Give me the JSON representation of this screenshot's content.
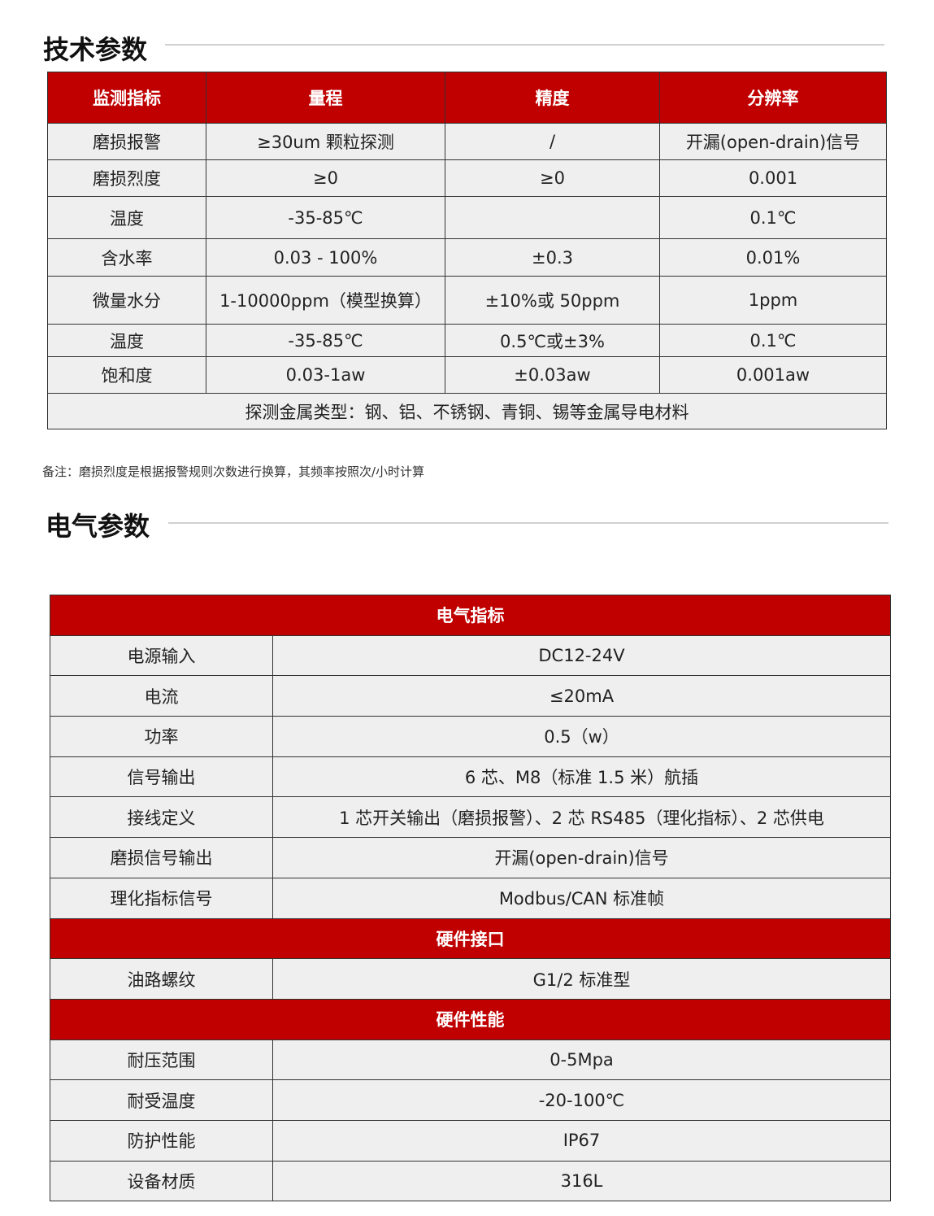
{
  "tech": {
    "title": "技术参数",
    "headers": [
      "监测指标",
      "量程",
      "精度",
      "分辨率"
    ],
    "rows": [
      [
        "磨损报警",
        "≥30um 颗粒探测",
        "/",
        "开漏(open-drain)信号"
      ],
      [
        "磨损烈度",
        "≥0",
        "≥0",
        "0.001"
      ],
      [
        "温度",
        "-35-85℃",
        "",
        "0.1℃"
      ],
      [
        "含水率",
        "0.03 - 100%",
        "±0.3",
        "0.01%"
      ],
      [
        "微量水分",
        "1-10000ppm（模型换算）",
        "±10%或 50ppm",
        "1ppm"
      ],
      [
        "温度",
        "-35-85℃",
        "0.5℃或±3%",
        "0.1℃"
      ],
      [
        "饱和度",
        "0.03-1aw",
        "±0.03aw",
        "0.001aw"
      ]
    ],
    "footer": "探测金属类型：钢、铝、不锈钢、青铜、锡等金属导电材料",
    "note": "备注：磨损烈度是根据报警规则次数进行换算，其频率按照次/小时计算"
  },
  "elec": {
    "title": "电气参数",
    "sections": [
      {
        "header": "电气指标",
        "rows": [
          [
            "电源输入",
            "DC12-24V"
          ],
          [
            "电流",
            "≤20mA"
          ],
          [
            "功率",
            "0.5（w）"
          ],
          [
            "信号输出",
            "6 芯、M8（标准 1.5 米）航插"
          ],
          [
            "接线定义",
            "1 芯开关输出（磨损报警）、2 芯 RS485（理化指标）、2 芯供电"
          ],
          [
            "磨损信号输出",
            "开漏(open-drain)信号"
          ],
          [
            "理化指标信号",
            "Modbus/CAN 标准帧"
          ]
        ]
      },
      {
        "header": "硬件接口",
        "rows": [
          [
            "油路螺纹",
            "G1/2  标准型"
          ]
        ]
      },
      {
        "header": "硬件性能",
        "rows": [
          [
            "耐压范围",
            "0-5Mpa"
          ],
          [
            "耐受温度",
            "-20-100℃"
          ],
          [
            "防护性能",
            "IP67"
          ],
          [
            "设备材质",
            "316L"
          ]
        ]
      }
    ]
  },
  "colors": {
    "header_bg": "#c00000",
    "cell_bg": "#efefef"
  }
}
